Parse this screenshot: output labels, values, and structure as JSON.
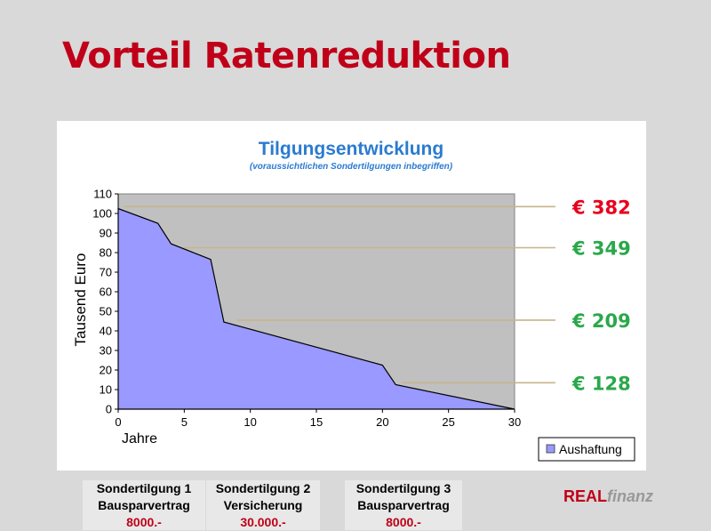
{
  "slide": {
    "title": "Vorteil Ratenreduktion"
  },
  "notes": [
    {
      "title": "Sondertilgung 1",
      "subtitle": "Bausparvertrag",
      "amount": "8000.-"
    },
    {
      "title": "Sondertilgung 2",
      "subtitle": "Versicherung",
      "amount": "30.000.-"
    },
    {
      "title": "Sondertilgung 3",
      "subtitle": "Bausparvertrag",
      "amount": "8000.-"
    }
  ],
  "brand": {
    "part1": "REAL",
    "part2": "finanz"
  },
  "colors": {
    "title": "#c00018",
    "area_fill": "#9999ff",
    "plot_bg": "#c0c0c0",
    "leader_line": "#c8b48c",
    "rate_first": "#e8001c",
    "rate_other": "#2aa84a",
    "chart_title": "#2b7bd0"
  },
  "chart_data": {
    "type": "area",
    "title": "Tilgungsentwicklung",
    "subtitle": "(voraussichtlichen Sondertilgungen inbegriffen)",
    "xlabel": "Jahre",
    "ylabel": "Tausend Euro",
    "xlim": [
      0,
      30
    ],
    "ylim": [
      0,
      110
    ],
    "x_ticks": [
      0,
      5,
      10,
      15,
      20,
      25,
      30
    ],
    "y_ticks": [
      0,
      10,
      20,
      30,
      40,
      50,
      60,
      70,
      80,
      90,
      100,
      110
    ],
    "grid": false,
    "legend": {
      "position": "bottom-right",
      "entries": [
        "Aushaftung"
      ]
    },
    "series": [
      {
        "name": "Aushaftung",
        "x": [
          0,
          3,
          4,
          7,
          8,
          20,
          21,
          30
        ],
        "y": [
          102.5,
          95,
          84.5,
          76.5,
          44.5,
          22.5,
          12.5,
          0
        ]
      }
    ],
    "annotations": [
      {
        "text": "€ 382",
        "from_x": 0.5,
        "to_x": 30.4,
        "y": 103.5,
        "color": "red"
      },
      {
        "text": "€ 349",
        "from_x": 5,
        "to_x": 30.4,
        "y": 82.5,
        "color": "green"
      },
      {
        "text": "€ 209",
        "from_x": 9,
        "to_x": 30.4,
        "y": 45.5,
        "color": "green"
      },
      {
        "text": "€ 128",
        "from_x": 21.5,
        "to_x": 30.4,
        "y": 13.5,
        "color": "green"
      }
    ]
  }
}
